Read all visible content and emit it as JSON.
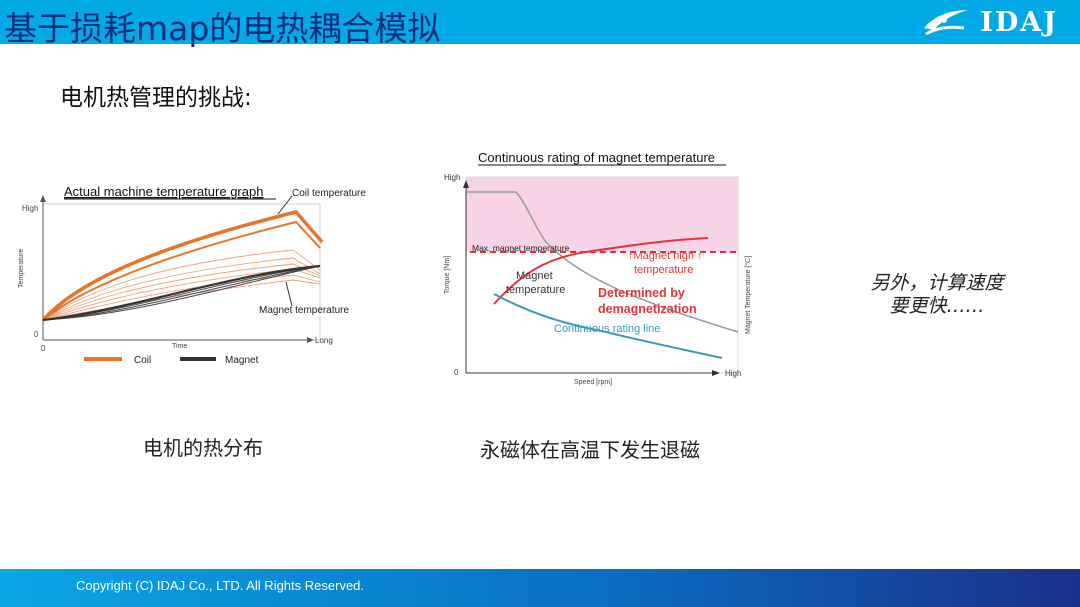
{
  "header": {
    "title": "基于损耗map的电热耦合模拟",
    "logo_text": "IDAJ"
  },
  "subtitle": "电机热管理的挑战:",
  "figure_left": {
    "title": "Actual machine temperature graph",
    "y_label": "Temperature",
    "y_high": "High",
    "y_zero": "0",
    "x_zero": "0",
    "x_label": "Time",
    "x_long": "Long",
    "coil_annotation": "Coil temperature",
    "magnet_annotation": "Magnet temperature",
    "legend_coil": "Coil",
    "legend_magnet": "Magnet",
    "colors": {
      "coil": "#e8742a",
      "magnet": "#333333"
    }
  },
  "figure_right": {
    "title": "Continuous rating of magnet temperature",
    "y_label": "Torque [Nm]",
    "y_high": "High",
    "origin": "0",
    "x_label": "Speed [rpm]",
    "x_high": "High",
    "y2_label": "Magnet Temperature [°C]",
    "max_magnet": "Max. magnet temperature",
    "magnet_high_1": "↑Magnet high ↑",
    "magnet_high_2": "temperature",
    "magnet_temp_1": "Magnet",
    "magnet_temp_2": "temperature",
    "demag_1": "Determined by",
    "demag_2": "demagnetization",
    "continuous": "Continuous rating line",
    "colors": {
      "zone": "#f6d3e6",
      "red": "#e8323a",
      "teal": "#3a9ab8",
      "gray": "#999999"
    }
  },
  "note": {
    "line1": "另外，计算速度",
    "line2": "要更快……"
  },
  "caption_left": "电机的热分布",
  "caption_right": "永磁体在高温下发生退磁",
  "footer": {
    "copyright": "Copyright (C)  IDAJ Co., LTD. All Rights Reserved."
  }
}
